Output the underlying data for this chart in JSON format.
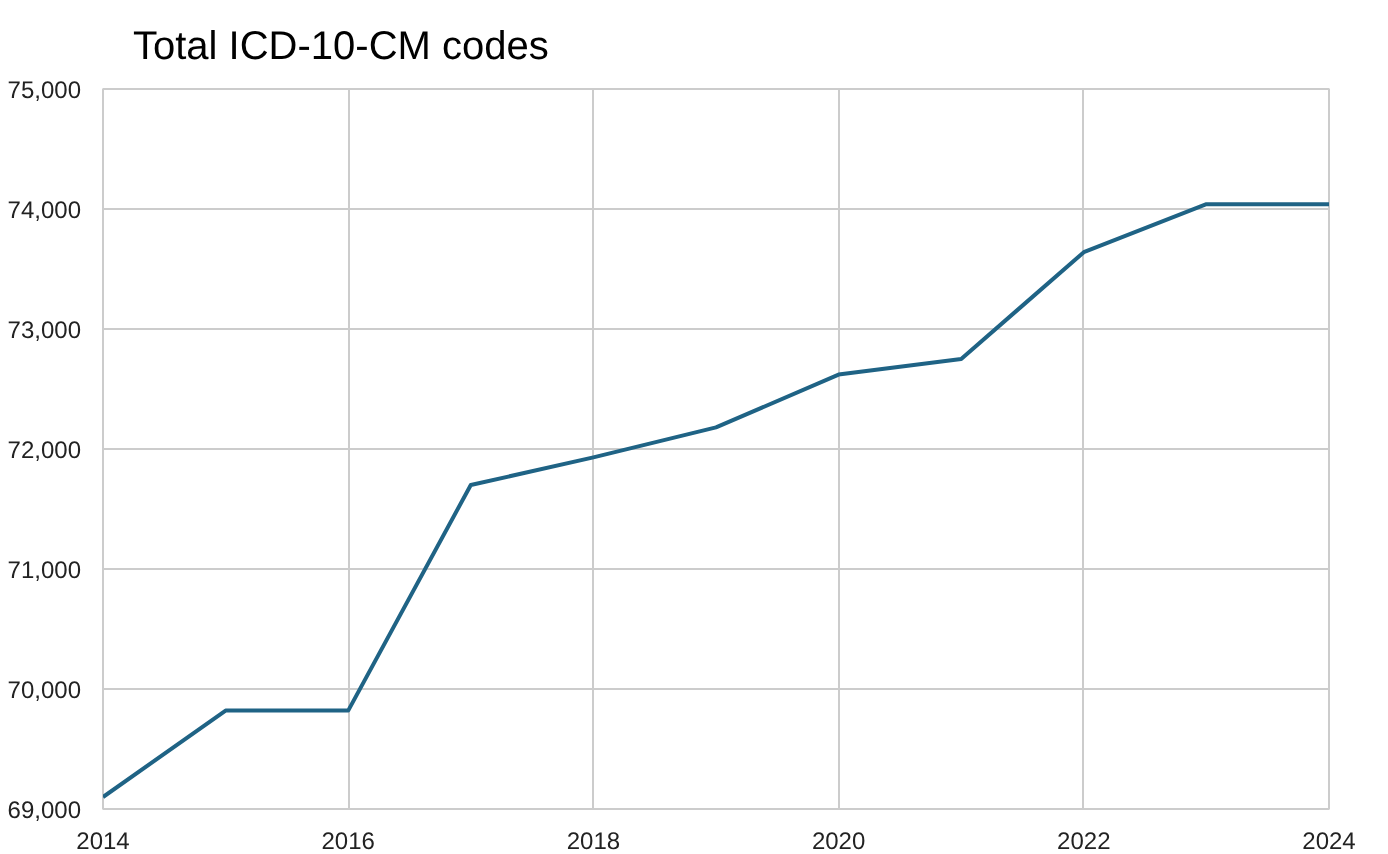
{
  "chart_data": {
    "type": "line",
    "title": "Total ICD-10-CM codes",
    "x": [
      2014,
      2015,
      2016,
      2017,
      2018,
      2019,
      2020,
      2021,
      2022,
      2023,
      2024
    ],
    "series": [
      {
        "color": "#1f6385",
        "values": [
          69100,
          69820,
          69820,
          71700,
          71930,
          72180,
          72620,
          72750,
          73640,
          74040,
          74040
        ]
      }
    ],
    "xlim": [
      2014,
      2024
    ],
    "xticks": [
      2014,
      2016,
      2018,
      2020,
      2022,
      2024
    ],
    "ylim": [
      69000,
      75000
    ],
    "yticks": [
      {
        "value": 69000,
        "label": "69,000"
      },
      {
        "value": 70000,
        "label": "70,000"
      },
      {
        "value": 71000,
        "label": "71,000"
      },
      {
        "value": 72000,
        "label": "72,000"
      },
      {
        "value": 73000,
        "label": "73,000"
      },
      {
        "value": 74000,
        "label": "74,000"
      },
      {
        "value": 75000,
        "label": "75,000"
      }
    ],
    "grid": true
  }
}
